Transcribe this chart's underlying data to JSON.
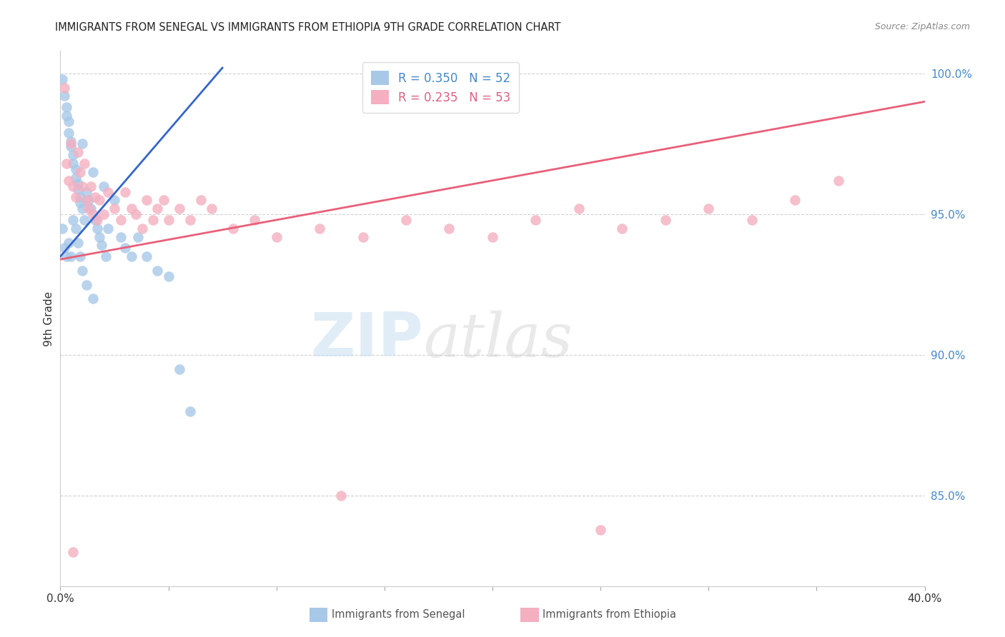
{
  "title": "IMMIGRANTS FROM SENEGAL VS IMMIGRANTS FROM ETHIOPIA 9TH GRADE CORRELATION CHART",
  "source": "Source: ZipAtlas.com",
  "ylabel": "9th Grade",
  "watermark_zip": "ZIP",
  "watermark_atlas": "atlas",
  "x_min": 0.0,
  "x_max": 0.4,
  "y_min": 0.818,
  "y_max": 1.008,
  "x_ticks": [
    0.0,
    0.05,
    0.1,
    0.15,
    0.2,
    0.25,
    0.3,
    0.35,
    0.4
  ],
  "x_tick_labels": [
    "0.0%",
    "",
    "",
    "",
    "",
    "",
    "",
    "",
    "40.0%"
  ],
  "y_ticks": [
    0.85,
    0.9,
    0.95,
    1.0
  ],
  "y_tick_labels": [
    "85.0%",
    "90.0%",
    "95.0%",
    "100.0%"
  ],
  "legend_labels": [
    "Immigrants from Senegal",
    "Immigrants from Ethiopia"
  ],
  "r_senegal": 0.35,
  "n_senegal": 52,
  "r_ethiopia": 0.235,
  "n_ethiopia": 53,
  "blue_color": "#a8c8e8",
  "pink_color": "#f4afc0",
  "blue_line_color": "#3366cc",
  "pink_line_color": "#e8607a",
  "blue_line_x": [
    0.0,
    0.075
  ],
  "blue_line_y": [
    0.935,
    1.002
  ],
  "pink_line_x": [
    0.0,
    0.4
  ],
  "pink_line_y": [
    0.934,
    0.99
  ],
  "senegal_x": [
    0.001,
    0.002,
    0.003,
    0.003,
    0.004,
    0.004,
    0.005,
    0.005,
    0.006,
    0.006,
    0.007,
    0.007,
    0.008,
    0.008,
    0.009,
    0.009,
    0.01,
    0.01,
    0.011,
    0.012,
    0.013,
    0.014,
    0.015,
    0.016,
    0.017,
    0.018,
    0.019,
    0.02,
    0.021,
    0.022,
    0.025,
    0.028,
    0.03,
    0.033,
    0.036,
    0.04,
    0.045,
    0.05,
    0.055,
    0.06,
    0.001,
    0.002,
    0.003,
    0.004,
    0.005,
    0.006,
    0.007,
    0.008,
    0.009,
    0.01,
    0.012,
    0.015
  ],
  "senegal_y": [
    0.998,
    0.992,
    0.988,
    0.985,
    0.983,
    0.979,
    0.976,
    0.974,
    0.971,
    0.968,
    0.966,
    0.963,
    0.961,
    0.959,
    0.956,
    0.954,
    0.975,
    0.952,
    0.948,
    0.958,
    0.955,
    0.952,
    0.965,
    0.948,
    0.945,
    0.942,
    0.939,
    0.96,
    0.935,
    0.945,
    0.955,
    0.942,
    0.938,
    0.935,
    0.942,
    0.935,
    0.93,
    0.928,
    0.895,
    0.88,
    0.945,
    0.938,
    0.935,
    0.94,
    0.935,
    0.948,
    0.945,
    0.94,
    0.935,
    0.93,
    0.925,
    0.92
  ],
  "ethiopia_x": [
    0.002,
    0.003,
    0.004,
    0.005,
    0.006,
    0.007,
    0.008,
    0.009,
    0.01,
    0.011,
    0.012,
    0.013,
    0.014,
    0.015,
    0.016,
    0.017,
    0.018,
    0.02,
    0.022,
    0.025,
    0.028,
    0.03,
    0.033,
    0.035,
    0.038,
    0.04,
    0.043,
    0.045,
    0.048,
    0.05,
    0.055,
    0.06,
    0.065,
    0.07,
    0.08,
    0.09,
    0.1,
    0.12,
    0.14,
    0.16,
    0.18,
    0.2,
    0.22,
    0.24,
    0.26,
    0.28,
    0.3,
    0.32,
    0.34,
    0.36,
    0.006,
    0.13,
    0.25
  ],
  "ethiopia_y": [
    0.995,
    0.968,
    0.962,
    0.975,
    0.96,
    0.956,
    0.972,
    0.965,
    0.96,
    0.968,
    0.955,
    0.952,
    0.96,
    0.95,
    0.956,
    0.948,
    0.955,
    0.95,
    0.958,
    0.952,
    0.948,
    0.958,
    0.952,
    0.95,
    0.945,
    0.955,
    0.948,
    0.952,
    0.955,
    0.948,
    0.952,
    0.948,
    0.955,
    0.952,
    0.945,
    0.948,
    0.942,
    0.945,
    0.942,
    0.948,
    0.945,
    0.942,
    0.948,
    0.952,
    0.945,
    0.948,
    0.952,
    0.948,
    0.955,
    0.962,
    0.83,
    0.85,
    0.838
  ]
}
